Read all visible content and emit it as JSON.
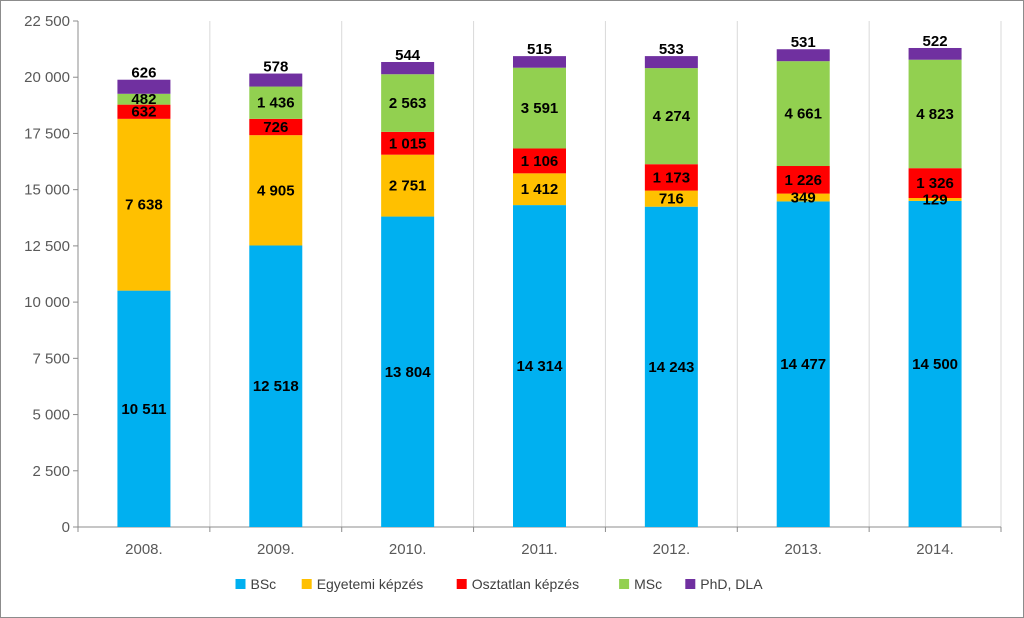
{
  "chart_data": {
    "type": "bar",
    "stacked": true,
    "title": "",
    "xlabel": "",
    "ylabel": "",
    "categories": [
      "2008.",
      "2009.",
      "2010.",
      "2011.",
      "2012.",
      "2013.",
      "2014."
    ],
    "ylim": [
      0,
      22500
    ],
    "yticks": [
      0,
      2500,
      5000,
      7500,
      10000,
      12500,
      15000,
      17500,
      20000,
      22500
    ],
    "ytick_labels": [
      "0",
      "2 500",
      "5 000",
      "7 500",
      "10 000",
      "12 500",
      "15 000",
      "17 500",
      "20 000",
      "22 500"
    ],
    "grid": "vertical",
    "legend_position": "bottom",
    "series": [
      {
        "name": "BSc",
        "color": "#00B0F0",
        "values": [
          10511,
          12518,
          13804,
          14314,
          14243,
          14477,
          14500
        ],
        "labels": [
          "10 511",
          "12 518",
          "13 804",
          "14 314",
          "14 243",
          "14 477",
          "14 500"
        ]
      },
      {
        "name": "Egyetemi képzés",
        "color": "#FFC000",
        "values": [
          7638,
          4905,
          2751,
          1412,
          716,
          349,
          129
        ],
        "labels": [
          "7 638",
          "4 905",
          "2 751",
          "1 412",
          "716",
          "349",
          "129"
        ]
      },
      {
        "name": "Osztatlan képzés",
        "color": "#FF0000",
        "values": [
          632,
          726,
          1015,
          1106,
          1173,
          1226,
          1326
        ],
        "labels": [
          "632",
          "726",
          "1 015",
          "1 106",
          "1 173",
          "1 226",
          "1 326"
        ]
      },
      {
        "name": "MSc",
        "color": "#92D050",
        "values": [
          482,
          1436,
          2563,
          3591,
          4274,
          4661,
          4823
        ],
        "labels": [
          "482",
          "1 436",
          "2 563",
          "3 591",
          "4 274",
          "4 661",
          "4 823"
        ]
      },
      {
        "name": "PhD, DLA",
        "color": "#7030A0",
        "values": [
          626,
          578,
          544,
          515,
          533,
          531,
          522
        ],
        "labels": [
          "626",
          "578",
          "544",
          "515",
          "533",
          "531",
          "522"
        ]
      }
    ]
  }
}
